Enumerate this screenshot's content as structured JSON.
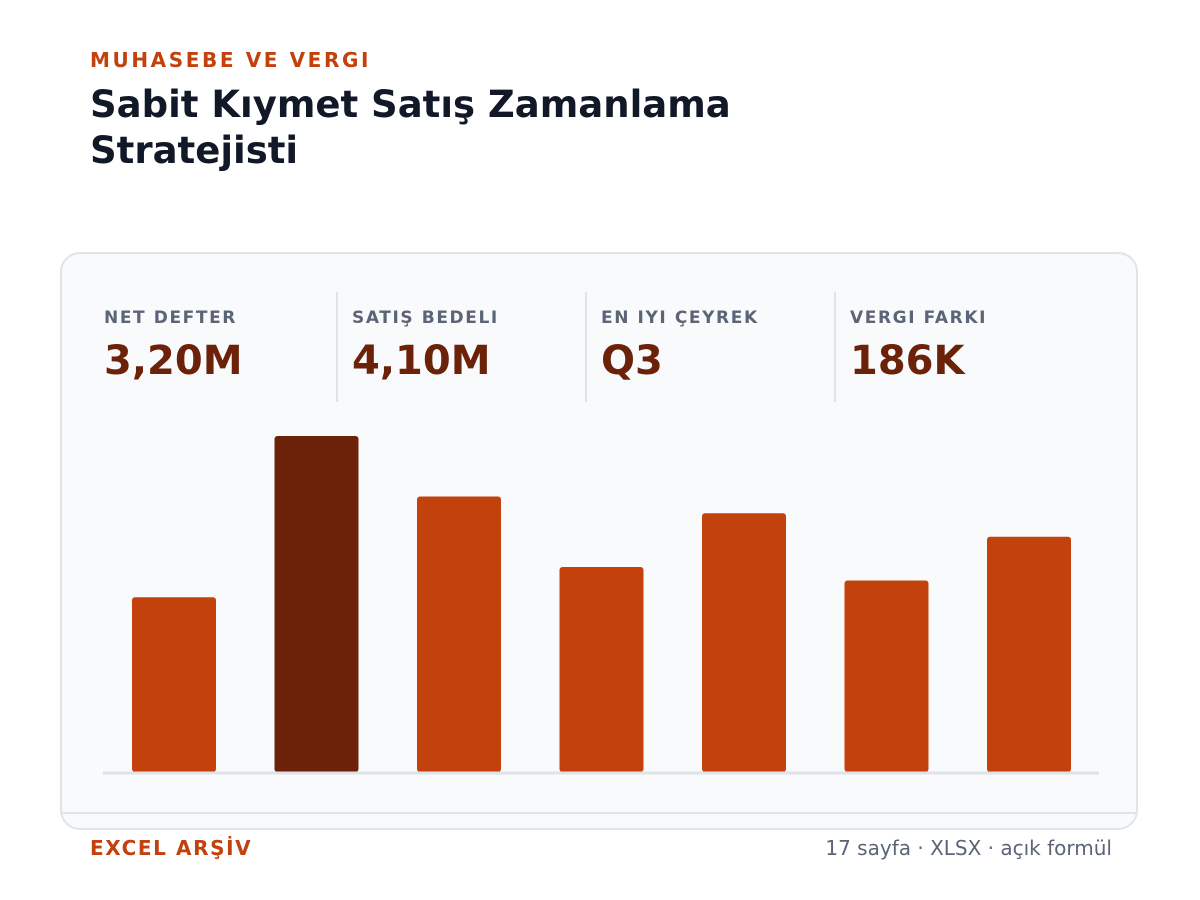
{
  "header": {
    "eyebrow": "MUHASEBE VE VERGI",
    "title": "Sabit Kıymet Satış Zamanlama Stratejisti"
  },
  "kpis": [
    {
      "label": "NET DEFTER",
      "value": "3,20M"
    },
    {
      "label": "SATIŞ BEDELI",
      "value": "4,10M"
    },
    {
      "label": "EN IYI ÇEYREK",
      "value": "Q3"
    },
    {
      "label": "VERGI FARKI",
      "value": "186K"
    }
  ],
  "footer": {
    "left": "EXCEL ARŞİV",
    "right": "17 sayfa · XLSX · açık formül"
  },
  "colors": {
    "accent": "#c2410c",
    "highlight": "#6b2209",
    "text": "#111827",
    "muted": "#5b6577"
  },
  "chart_data": {
    "type": "bar",
    "values": [
      52,
      100,
      82,
      61,
      77,
      57,
      70
    ],
    "highlight_index": 1,
    "ylim": [
      0,
      100
    ],
    "grid": false
  }
}
